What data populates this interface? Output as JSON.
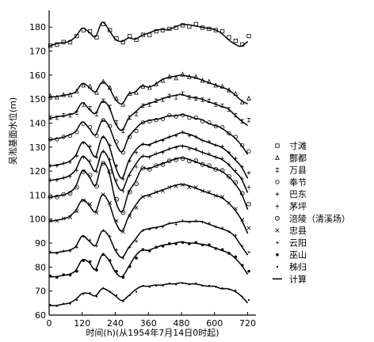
{
  "chart_data": {
    "type": "line",
    "xlabel": "时间(h)(从1954年7月14日0时起)",
    "ylabel": "吴淞基面水位(m)",
    "xlim": [
      0,
      750
    ],
    "ylim": [
      60,
      187
    ],
    "xticks": [
      0,
      120,
      240,
      360,
      480,
      600,
      720
    ],
    "yticks": [
      60,
      70,
      80,
      90,
      100,
      110,
      120,
      130,
      140,
      150,
      160,
      170,
      180
    ],
    "legend": {
      "placement": "right"
    },
    "series": [
      {
        "name": "寸滩",
        "marker": "square",
        "x": [
          0,
          24,
          48,
          72,
          96,
          120,
          144,
          168,
          192,
          216,
          240,
          264,
          288,
          312,
          336,
          360,
          384,
          408,
          432,
          456,
          480,
          504,
          528,
          552,
          576,
          600,
          624,
          648,
          672,
          696,
          720
        ],
        "y": [
          172,
          173,
          173.5,
          174,
          176,
          179,
          178,
          176,
          181,
          179,
          175,
          174,
          176,
          175,
          176.5,
          177,
          178,
          179,
          179,
          180,
          180.5,
          180.5,
          181,
          180,
          179,
          179,
          178,
          176,
          174,
          173,
          176
        ]
      },
      {
        "name": "鄷都",
        "marker": "triangle",
        "x": [
          0,
          24,
          48,
          72,
          96,
          120,
          144,
          168,
          192,
          216,
          240,
          264,
          288,
          312,
          336,
          360,
          384,
          408,
          432,
          456,
          480,
          504,
          528,
          552,
          576,
          600,
          624,
          648,
          672,
          696,
          720
        ],
        "y": [
          151,
          151,
          151.5,
          152,
          153,
          156,
          155,
          153,
          157,
          155,
          150,
          148,
          152,
          153,
          155,
          155,
          156,
          158,
          159,
          159,
          160,
          159.5,
          159,
          158,
          157,
          156,
          155,
          154,
          152,
          149,
          150
        ]
      },
      {
        "name": "万县",
        "marker": "hbar",
        "x": [
          0,
          24,
          48,
          72,
          96,
          120,
          144,
          168,
          192,
          216,
          240,
          264,
          288,
          312,
          336,
          360,
          384,
          408,
          432,
          456,
          480,
          504,
          528,
          552,
          576,
          600,
          624,
          648,
          672,
          696,
          720
        ],
        "y": [
          142,
          142.5,
          143,
          143.5,
          144,
          148,
          146,
          144,
          149,
          147,
          140,
          137,
          142,
          144,
          147,
          148,
          149,
          150,
          151,
          151,
          152,
          151,
          150,
          150,
          149,
          148,
          147,
          146,
          143,
          141,
          141
        ]
      },
      {
        "name": "奉节",
        "marker": "circle",
        "x": [
          0,
          24,
          48,
          72,
          96,
          120,
          144,
          168,
          192,
          216,
          240,
          264,
          288,
          312,
          336,
          360,
          384,
          408,
          432,
          456,
          480,
          504,
          528,
          552,
          576,
          600,
          624,
          648,
          672,
          696,
          720
        ],
        "y": [
          133,
          133.5,
          134,
          135,
          136,
          140,
          138,
          135,
          141,
          139,
          132,
          128,
          134,
          137,
          140,
          141,
          141,
          142,
          143,
          143,
          143,
          142.5,
          142,
          141,
          140,
          139,
          138,
          136,
          134,
          131,
          128
        ]
      },
      {
        "name": "巴东",
        "marker": "plus",
        "x": [
          0,
          24,
          48,
          72,
          96,
          120,
          144,
          168,
          192,
          216,
          240,
          264,
          288,
          312,
          336,
          360,
          384,
          408,
          432,
          456,
          480,
          504,
          528,
          552,
          576,
          600,
          624,
          648,
          672,
          696,
          720
        ],
        "y": [
          122,
          122.5,
          123,
          124,
          126,
          132,
          130,
          126,
          134,
          131,
          122,
          117,
          124,
          128,
          131,
          131,
          132,
          133,
          134,
          135,
          136,
          135,
          134,
          133,
          132,
          131,
          130,
          128,
          125,
          122,
          119
        ]
      },
      {
        "name": "茅坪",
        "marker": "cross",
        "x": [
          0,
          24,
          48,
          72,
          96,
          120,
          144,
          168,
          192,
          216,
          240,
          264,
          288,
          312,
          336,
          360,
          384,
          408,
          432,
          456,
          480,
          504,
          528,
          552,
          576,
          600,
          624,
          648,
          672,
          696,
          720
        ],
        "y": [
          116,
          116.5,
          117,
          118,
          120,
          126,
          124,
          120,
          128,
          125,
          116,
          112,
          118,
          122,
          126,
          126,
          127,
          128,
          129,
          130,
          130,
          129.5,
          129,
          128,
          127,
          126,
          125,
          123,
          120,
          117,
          113
        ]
      },
      {
        "name": "涪陵（清溪场）",
        "marker": "circle-dot",
        "x": [
          0,
          24,
          48,
          72,
          96,
          120,
          144,
          168,
          192,
          216,
          240,
          264,
          288,
          312,
          336,
          360,
          384,
          408,
          432,
          456,
          480,
          504,
          528,
          552,
          576,
          600,
          624,
          648,
          672,
          696,
          720
        ],
        "y": [
          109,
          109.5,
          110,
          111,
          113,
          120,
          118,
          114,
          123,
          120,
          108,
          103,
          111,
          115,
          121,
          121,
          122,
          123,
          124,
          125,
          125,
          124.5,
          124,
          123,
          122,
          121,
          120,
          118,
          115,
          111,
          106
        ]
      },
      {
        "name": "忠县",
        "marker": "x",
        "x": [
          0,
          24,
          48,
          72,
          96,
          120,
          144,
          168,
          192,
          216,
          240,
          264,
          288,
          312,
          336,
          360,
          384,
          408,
          432,
          456,
          480,
          504,
          528,
          552,
          576,
          600,
          624,
          648,
          672,
          696,
          720
        ],
        "y": [
          99,
          99.5,
          100,
          101,
          103,
          108,
          106,
          103,
          110,
          107,
          99,
          95,
          101,
          105,
          109,
          110,
          111,
          112,
          113,
          114,
          114,
          113.5,
          113,
          112,
          111,
          110,
          109,
          107,
          104,
          100,
          96
        ]
      },
      {
        "name": "云阳",
        "marker": "plus-small",
        "x": [
          0,
          24,
          48,
          72,
          96,
          120,
          144,
          168,
          192,
          216,
          240,
          264,
          288,
          312,
          336,
          360,
          384,
          408,
          432,
          456,
          480,
          504,
          528,
          552,
          576,
          600,
          624,
          648,
          672,
          696,
          720
        ],
        "y": [
          86,
          86,
          86.5,
          87,
          88,
          93,
          91,
          89,
          95,
          93,
          87,
          84,
          88,
          91,
          95,
          96,
          96,
          97,
          98,
          98,
          99,
          99,
          99,
          99,
          98,
          97,
          96,
          95,
          93,
          89,
          86
        ]
      },
      {
        "name": "巫山",
        "marker": "filled-dot",
        "x": [
          0,
          24,
          48,
          72,
          96,
          120,
          144,
          168,
          192,
          216,
          240,
          264,
          288,
          312,
          336,
          360,
          384,
          408,
          432,
          456,
          480,
          504,
          528,
          552,
          576,
          600,
          624,
          648,
          672,
          696,
          720
        ],
        "y": [
          76,
          76,
          76.5,
          77,
          78,
          83,
          82,
          79,
          85,
          83,
          78,
          76,
          80,
          84,
          87,
          87,
          88,
          89,
          89.5,
          90,
          90,
          90,
          90,
          89.5,
          89,
          88,
          87,
          86,
          84,
          81,
          78
        ]
      },
      {
        "name": "秭归",
        "marker": "dot-small",
        "x": [
          0,
          24,
          48,
          72,
          96,
          120,
          144,
          168,
          192,
          216,
          240,
          264,
          288,
          312,
          336,
          360,
          384,
          408,
          432,
          456,
          480,
          504,
          528,
          552,
          576,
          600,
          624,
          648,
          672,
          696,
          720
        ],
        "y": [
          64,
          64,
          64.5,
          65,
          66,
          69,
          69,
          68,
          71,
          70,
          68,
          66,
          68,
          70,
          72,
          72,
          72,
          72.5,
          73,
          73,
          73,
          73,
          73,
          72.5,
          72,
          72,
          71,
          71,
          70,
          68,
          66
        ]
      }
    ],
    "computed": {
      "name": "计算",
      "x": [
        0,
        24,
        48,
        72,
        96,
        120,
        144,
        168,
        192,
        216,
        240,
        264,
        288,
        312,
        336,
        360,
        384,
        408,
        432,
        456,
        480,
        504,
        528,
        552,
        576,
        600,
        624,
        648,
        672,
        696,
        720
      ],
      "curves": [
        [
          172,
          173,
          173.5,
          174,
          176,
          179.5,
          178,
          176,
          182,
          179,
          175,
          174,
          175.5,
          175,
          176.5,
          177.5,
          178.5,
          179,
          179,
          180,
          181,
          181,
          180.5,
          180,
          179.5,
          179,
          177.5,
          175,
          173,
          172,
          174
        ],
        [
          151,
          151,
          151.5,
          152,
          153,
          156.5,
          155,
          153,
          157,
          155,
          150,
          148,
          152,
          153,
          155.5,
          155,
          156,
          158,
          159,
          159.5,
          160,
          159.5,
          159,
          158,
          157,
          156,
          155,
          154,
          152,
          149.5,
          148
        ],
        [
          142,
          142.5,
          143,
          143.5,
          144.5,
          148.5,
          146,
          144,
          149,
          147,
          140,
          137,
          142,
          144.5,
          147,
          148,
          149,
          150,
          151,
          151.5,
          152,
          151,
          150.5,
          150,
          149,
          148,
          147,
          146,
          143.5,
          141,
          139
        ],
        [
          133,
          133.5,
          134,
          135,
          136.5,
          140.5,
          138,
          135,
          141,
          139,
          132,
          128,
          134,
          137.5,
          140,
          141,
          141.5,
          142,
          143,
          143,
          143.5,
          143,
          142,
          141.5,
          140,
          139,
          138,
          136,
          134,
          131,
          127
        ],
        [
          122,
          122.5,
          123,
          124,
          126.5,
          132,
          130,
          126,
          134,
          131,
          122,
          117,
          124,
          128.5,
          131,
          131,
          132,
          133,
          134,
          135,
          136,
          135.5,
          134.5,
          133,
          132,
          131,
          130,
          128,
          125,
          122,
          117
        ],
        [
          116,
          116.5,
          117,
          118,
          120.5,
          126,
          124,
          120,
          128,
          125,
          116,
          112,
          118,
          122.5,
          126,
          126,
          127,
          128,
          129,
          130,
          130.5,
          130,
          129,
          128,
          127,
          126,
          125,
          123,
          120,
          117,
          111
        ],
        [
          109,
          109.5,
          110,
          111,
          113.5,
          120,
          118,
          114,
          123,
          120,
          108,
          103,
          111,
          115.5,
          121,
          121,
          122,
          123,
          124,
          125,
          125.5,
          125,
          124,
          123,
          122,
          121,
          120,
          118,
          115,
          111,
          104
        ],
        [
          99,
          99.5,
          100,
          101,
          103.5,
          108,
          106,
          103,
          110,
          107,
          99,
          95,
          101,
          105.5,
          109,
          110,
          111,
          112,
          113,
          114,
          114.5,
          114,
          113,
          112,
          111,
          110,
          109,
          107,
          104,
          100,
          94
        ],
        [
          86,
          86,
          86.5,
          87,
          88.5,
          93,
          91,
          89,
          95,
          93,
          87,
          84,
          88,
          91.5,
          95,
          96,
          96.5,
          97,
          98,
          98.5,
          99,
          99,
          99,
          99,
          98,
          97,
          96,
          95,
          93,
          89,
          85
        ],
        [
          76,
          76,
          76.5,
          77,
          78.5,
          83,
          82,
          79,
          85,
          83,
          78,
          76,
          80,
          84.5,
          87,
          87,
          88,
          89,
          89.5,
          90,
          90.5,
          90,
          90,
          89.5,
          89,
          88,
          87,
          86,
          84,
          81,
          77
        ],
        [
          64,
          64,
          64.5,
          65,
          66.5,
          69,
          69,
          68,
          71,
          70,
          68,
          66,
          68,
          70.5,
          72,
          72,
          72.5,
          72.5,
          73,
          73,
          73.5,
          73,
          73,
          72.5,
          72,
          72,
          71,
          71,
          70,
          68,
          65
        ]
      ]
    }
  }
}
